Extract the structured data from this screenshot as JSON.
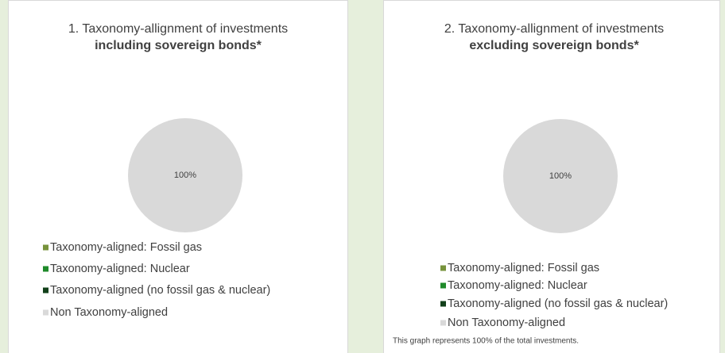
{
  "chart_data": [
    {
      "type": "pie",
      "title": "1. Taxonomy-allignment of investments",
      "subtitle": "including sovereign bonds*",
      "categories": [
        "Taxonomy-aligned: Fossil gas",
        "Taxonomy-aligned: Nuclear",
        "Taxonomy-aligned (no fossil gas & nuclear)",
        "Non Taxonomy-aligned"
      ],
      "values": [
        0,
        0,
        0,
        100
      ],
      "value_labels": [
        null,
        null,
        null,
        "100%"
      ],
      "colors": [
        "#77933c",
        "#1f8a2a",
        "#12401a",
        "#d9d9d9"
      ]
    },
    {
      "type": "pie",
      "title": "2. Taxonomy-allignment of investments",
      "subtitle": "excluding sovereign bonds*",
      "categories": [
        "Taxonomy-aligned: Fossil gas",
        "Taxonomy-aligned: Nuclear",
        "Taxonomy-aligned (no fossil gas & nuclear)",
        "Non Taxonomy-aligned"
      ],
      "values": [
        0,
        0,
        0,
        100
      ],
      "value_labels": [
        null,
        null,
        null,
        "100%"
      ],
      "colors": [
        "#77933c",
        "#1f8a2a",
        "#12401a",
        "#d9d9d9"
      ],
      "footnote": "This graph represents 100% of the total investments."
    }
  ]
}
